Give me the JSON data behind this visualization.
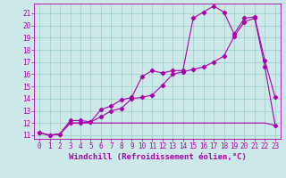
{
  "xlabel": "Windchill (Refroidissement éolien,°C)",
  "background_color": "#cce8e8",
  "grid_color": "#99cccc",
  "line_color": "#aa00aa",
  "xlim": [
    -0.5,
    23.5
  ],
  "ylim": [
    10.7,
    21.8
  ],
  "yticks": [
    11,
    12,
    13,
    14,
    15,
    16,
    17,
    18,
    19,
    20,
    21
  ],
  "xticks": [
    0,
    1,
    2,
    3,
    4,
    5,
    6,
    7,
    8,
    9,
    10,
    11,
    12,
    13,
    14,
    15,
    16,
    17,
    18,
    19,
    20,
    21,
    22,
    23
  ],
  "line1_x": [
    0,
    1,
    2,
    3,
    4,
    5,
    6,
    7,
    8,
    9,
    10,
    11,
    12,
    13,
    14,
    15,
    16,
    17,
    18,
    19,
    20,
    21,
    22,
    23
  ],
  "line1_y": [
    11.2,
    11.0,
    11.1,
    12.2,
    12.2,
    12.1,
    13.1,
    13.4,
    13.9,
    14.1,
    15.8,
    16.3,
    16.1,
    16.3,
    16.3,
    20.6,
    21.1,
    21.6,
    21.1,
    19.3,
    20.6,
    20.7,
    17.1,
    14.1
  ],
  "line2_x": [
    0,
    1,
    2,
    3,
    4,
    5,
    6,
    7,
    8,
    9,
    10,
    11,
    12,
    13,
    14,
    15,
    16,
    17,
    18,
    19,
    20,
    21,
    22,
    23
  ],
  "line2_y": [
    11.2,
    11.0,
    11.1,
    12.0,
    12.0,
    12.1,
    12.5,
    13.0,
    13.2,
    14.0,
    14.1,
    14.3,
    15.1,
    16.0,
    16.2,
    16.4,
    16.6,
    17.0,
    17.5,
    19.1,
    20.3,
    20.6,
    16.6,
    11.8
  ],
  "line3_x": [
    0,
    1,
    2,
    3,
    4,
    5,
    6,
    7,
    8,
    9,
    10,
    11,
    12,
    13,
    14,
    15,
    16,
    17,
    18,
    19,
    20,
    21,
    22,
    23
  ],
  "line3_y": [
    11.2,
    11.0,
    11.1,
    12.0,
    12.0,
    12.0,
    12.0,
    12.0,
    12.0,
    12.0,
    12.0,
    12.0,
    12.0,
    12.0,
    12.0,
    12.0,
    12.0,
    12.0,
    12.0,
    12.0,
    12.0,
    12.0,
    12.0,
    11.8
  ],
  "marker": "D",
  "markersize": 2.2,
  "linewidth": 0.8,
  "tick_fontsize": 5.5,
  "xlabel_fontsize": 6.5
}
